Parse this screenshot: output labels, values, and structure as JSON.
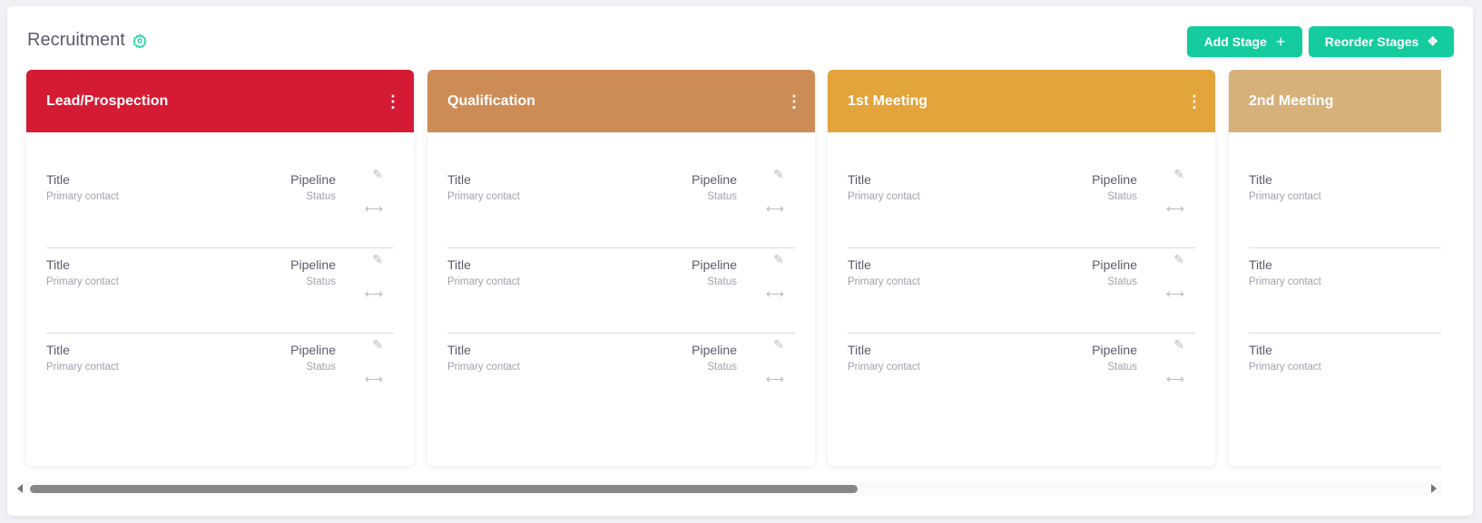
{
  "header": {
    "title": "Recruitment",
    "settings_icon": "gear-icon",
    "add_stage_label": "Add Stage",
    "reorder_label": "Reorder Stages"
  },
  "colors": {
    "accent": "#14cc9e"
  },
  "lanes": [
    {
      "name": "Lead/Prospection",
      "color": "#d41b33",
      "menu": true
    },
    {
      "name": "Qualification",
      "color": "#cd8c56",
      "menu": true
    },
    {
      "name": "1st Meeting",
      "color": "#e2a43b",
      "menu": true
    },
    {
      "name": "2nd Meeting",
      "color": "#d6b17a",
      "menu": false
    }
  ],
  "card": {
    "title": "Title",
    "contact": "Primary contact",
    "pipeline": "Pipeline",
    "status": "Status"
  },
  "cards_per_lane": 3
}
